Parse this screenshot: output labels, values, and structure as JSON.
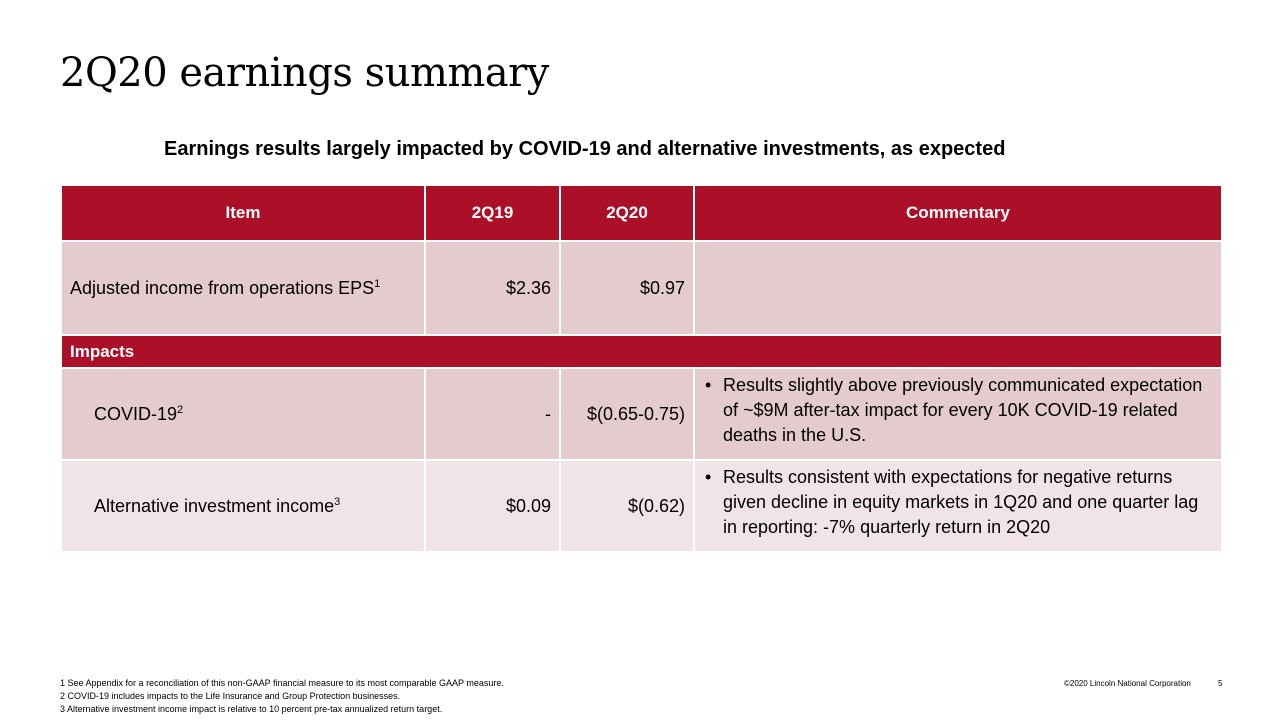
{
  "slide": {
    "title": "2Q20 earnings summary",
    "subtitle": "Earnings results largely impacted by COVID-19 and alternative investments, as expected"
  },
  "table": {
    "headers": [
      "Item",
      "2Q19",
      "2Q20",
      "Commentary"
    ],
    "eps_row": {
      "item": "Adjusted income from operations EPS",
      "footnote": "1",
      "q219": "$2.36",
      "q220": "$0.97",
      "commentary": ""
    },
    "impacts_label": "Impacts",
    "impact_rows": [
      {
        "item": "COVID-19",
        "footnote": "2",
        "q219": "-",
        "q220": "$(0.65-0.75)",
        "commentary": "Results slightly above previously communicated expectation of ~$9M after-tax impact for every 10K COVID-19 related deaths in the U.S."
      },
      {
        "item": "Alternative investment income",
        "footnote": "3",
        "q219": "$0.09",
        "q220": "$(0.62)",
        "commentary": "Results consistent with expectations for negative returns given decline in equity markets in 1Q20 and one quarter lag in reporting: -7% quarterly return in 2Q20"
      }
    ]
  },
  "footnotes": [
    "1  See Appendix for a reconciliation of this non-GAAP financial measure to its most comparable GAAP measure.",
    "2  COVID-19 includes impacts to the Life Insurance and Group Protection businesses.",
    "3  Alternative investment income impact is relative to 10 percent pre-tax annualized return target."
  ],
  "footer": {
    "copyright": "©2020 Lincoln National Corporation",
    "page_number": "5"
  },
  "colors": {
    "header_red": "#ac1029",
    "row_pink": "#e3cbce",
    "row_light_pink": "#f1e4e6"
  }
}
